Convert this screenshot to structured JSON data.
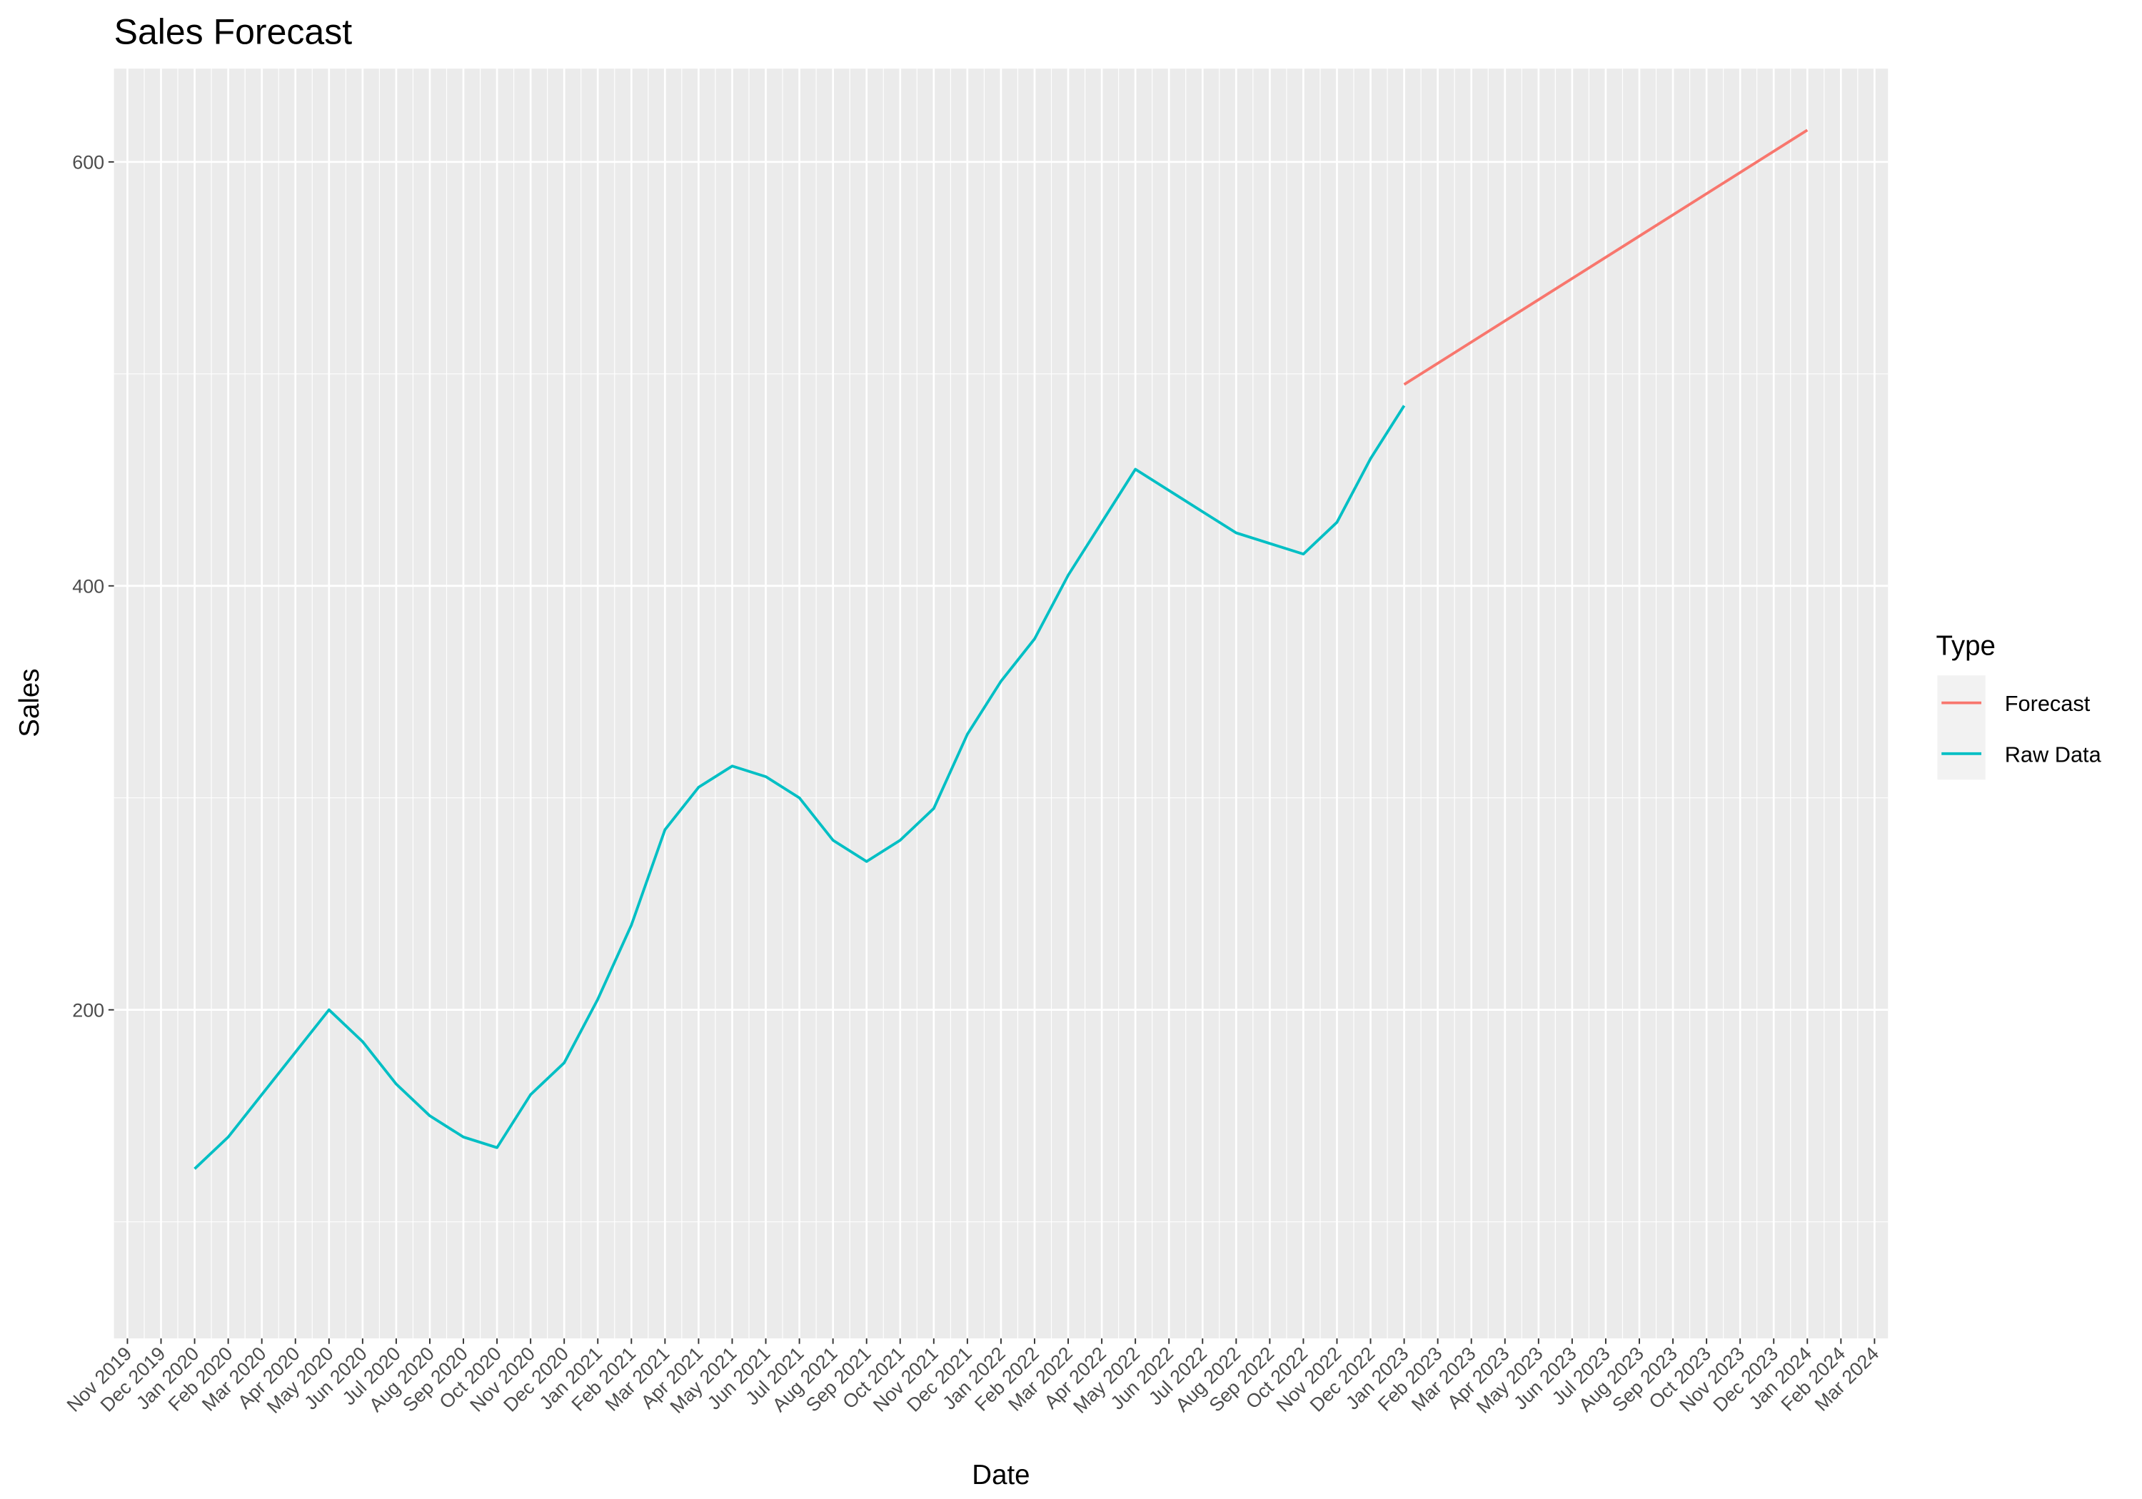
{
  "chart_data": {
    "type": "line",
    "title": "Sales Forecast",
    "x_label": "Date",
    "y_label": "Sales",
    "legend_title": "Type",
    "legend_position": "right",
    "grid": true,
    "ylim": [
      45,
      644
    ],
    "yticks": [
      200,
      400,
      600
    ],
    "xlim": [
      "2019-11",
      "2024-03"
    ],
    "xticks": [
      {
        "value": "2019-11",
        "label": "Nov 2019"
      },
      {
        "value": "2019-12",
        "label": "Dec 2019"
      },
      {
        "value": "2020-01",
        "label": "Jan 2020"
      },
      {
        "value": "2020-02",
        "label": "Feb 2020"
      },
      {
        "value": "2020-03",
        "label": "Mar 2020"
      },
      {
        "value": "2020-04",
        "label": "Apr 2020"
      },
      {
        "value": "2020-05",
        "label": "May 2020"
      },
      {
        "value": "2020-06",
        "label": "Jun 2020"
      },
      {
        "value": "2020-07",
        "label": "Jul 2020"
      },
      {
        "value": "2020-08",
        "label": "Aug 2020"
      },
      {
        "value": "2020-09",
        "label": "Sep 2020"
      },
      {
        "value": "2020-10",
        "label": "Oct 2020"
      },
      {
        "value": "2020-11",
        "label": "Nov 2020"
      },
      {
        "value": "2020-12",
        "label": "Dec 2020"
      },
      {
        "value": "2021-01",
        "label": "Jan 2021"
      },
      {
        "value": "2021-02",
        "label": "Feb 2021"
      },
      {
        "value": "2021-03",
        "label": "Mar 2021"
      },
      {
        "value": "2021-04",
        "label": "Apr 2021"
      },
      {
        "value": "2021-05",
        "label": "May 2021"
      },
      {
        "value": "2021-06",
        "label": "Jun 2021"
      },
      {
        "value": "2021-07",
        "label": "Jul 2021"
      },
      {
        "value": "2021-08",
        "label": "Aug 2021"
      },
      {
        "value": "2021-09",
        "label": "Sep 2021"
      },
      {
        "value": "2021-10",
        "label": "Oct 2021"
      },
      {
        "value": "2021-11",
        "label": "Nov 2021"
      },
      {
        "value": "2021-12",
        "label": "Dec 2021"
      },
      {
        "value": "2022-01",
        "label": "Jan 2022"
      },
      {
        "value": "2022-02",
        "label": "Feb 2022"
      },
      {
        "value": "2022-03",
        "label": "Mar 2022"
      },
      {
        "value": "2022-04",
        "label": "Apr 2022"
      },
      {
        "value": "2022-05",
        "label": "May 2022"
      },
      {
        "value": "2022-06",
        "label": "Jun 2022"
      },
      {
        "value": "2022-07",
        "label": "Jul 2022"
      },
      {
        "value": "2022-08",
        "label": "Aug 2022"
      },
      {
        "value": "2022-09",
        "label": "Sep 2022"
      },
      {
        "value": "2022-10",
        "label": "Oct 2022"
      },
      {
        "value": "2022-11",
        "label": "Nov 2022"
      },
      {
        "value": "2022-12",
        "label": "Dec 2022"
      },
      {
        "value": "2023-01",
        "label": "Jan 2023"
      },
      {
        "value": "2023-02",
        "label": "Feb 2023"
      },
      {
        "value": "2023-03",
        "label": "Mar 2023"
      },
      {
        "value": "2023-04",
        "label": "Apr 2023"
      },
      {
        "value": "2023-05",
        "label": "May 2023"
      },
      {
        "value": "2023-06",
        "label": "Jun 2023"
      },
      {
        "value": "2023-07",
        "label": "Jul 2023"
      },
      {
        "value": "2023-08",
        "label": "Aug 2023"
      },
      {
        "value": "2023-09",
        "label": "Sep 2023"
      },
      {
        "value": "2023-10",
        "label": "Oct 2023"
      },
      {
        "value": "2023-11",
        "label": "Nov 2023"
      },
      {
        "value": "2023-12",
        "label": "Dec 2023"
      },
      {
        "value": "2024-01",
        "label": "Jan 2024"
      },
      {
        "value": "2024-02",
        "label": "Feb 2024"
      },
      {
        "value": "2024-03",
        "label": "Mar 2024"
      }
    ],
    "series": [
      {
        "name": "Forecast",
        "color": "#F8766D",
        "x": [
          "2023-01",
          "2024-01"
        ],
        "values": [
          495,
          615
        ]
      },
      {
        "name": "Raw Data",
        "color": "#00BFC4",
        "x": [
          "2020-01",
          "2020-02",
          "2020-03",
          "2020-04",
          "2020-05",
          "2020-06",
          "2020-07",
          "2020-08",
          "2020-09",
          "2020-10",
          "2020-11",
          "2020-12",
          "2021-01",
          "2021-02",
          "2021-03",
          "2021-04",
          "2021-05",
          "2021-06",
          "2021-07",
          "2021-08",
          "2021-09",
          "2021-10",
          "2021-11",
          "2021-12",
          "2022-01",
          "2022-02",
          "2022-03",
          "2022-04",
          "2022-05",
          "2022-06",
          "2022-07",
          "2022-08",
          "2022-09",
          "2022-10",
          "2022-11",
          "2022-12",
          "2023-01"
        ],
        "values": [
          125,
          140,
          160,
          180,
          200,
          185,
          165,
          150,
          140,
          135,
          160,
          175,
          205,
          240,
          285,
          305,
          315,
          310,
          300,
          280,
          270,
          280,
          295,
          330,
          355,
          375,
          405,
          430,
          455,
          445,
          435,
          425,
          420,
          415,
          430,
          460,
          485
        ]
      }
    ]
  }
}
